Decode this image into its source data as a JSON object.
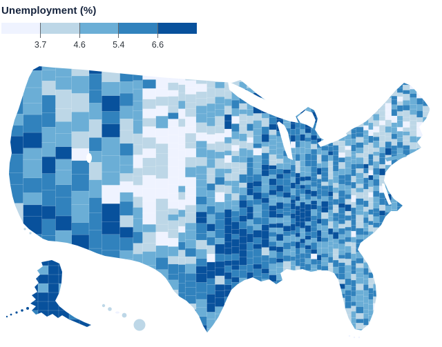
{
  "chart_data": {
    "type": "heatmap",
    "subtype": "choropleth-us-counties",
    "title": "Unemployment (%)",
    "projection": "albers-usa-with-alaska-hawaii-insets",
    "legend": {
      "position": "top-left",
      "scale": "quantile",
      "classes": 5,
      "tick_labels": [
        "3.7",
        "4.6",
        "5.4",
        "6.6"
      ],
      "thresholds": [
        3.7,
        4.6,
        5.4,
        6.6
      ],
      "colors": [
        "#eff3ff",
        "#bdd7e7",
        "#6baed6",
        "#3182bd",
        "#08519c"
      ],
      "tick_line_color": "#5f656c",
      "label_color": "#2f353c",
      "title_color": "#15233c",
      "swatch_width": 56.6,
      "swatch_height": 16
    },
    "regions_visible": [
      "contiguous United States",
      "Alaska inset",
      "Hawaii inset"
    ],
    "water_features": [
      "Lake Superior",
      "Lake Michigan",
      "Lake Huron",
      "Lake Erie",
      "Lake Ontario",
      "Great Salt Lake",
      "Chesapeake Bay"
    ],
    "pattern_grid": {
      "description": "Approximate regional shading intensity read off the map (0=lightest class .. 4=darkest class); 16 columns west-to-east, 10 rows north-to-south over the contiguous US",
      "rows": [
        "4322111123222233",
        "3312210123322222",
        "3322310112332111",
        "4321200112222232",
        "4321100223432222",
        "3433311333332222",
        "3443311244332222",
        "3432112343222222",
        "3333223332232222",
        "4444443332222222"
      ]
    },
    "alaska_dominant_class": 4,
    "hawaii_dominant_class": 1,
    "background": "#ffffff"
  }
}
